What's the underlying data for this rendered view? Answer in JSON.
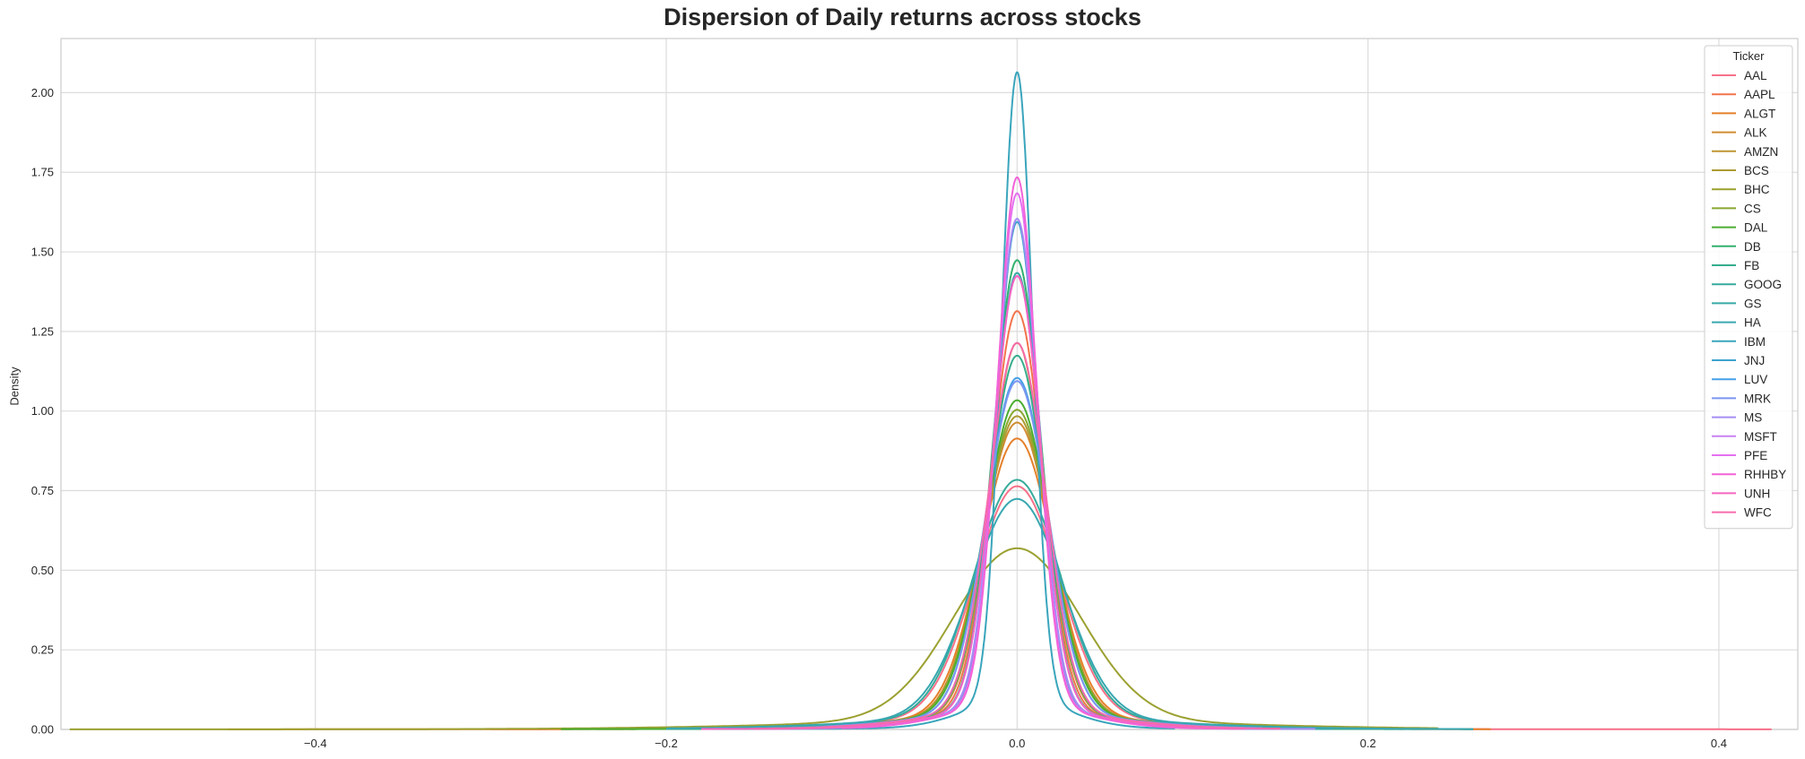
{
  "chart_data": {
    "type": "line",
    "title": "Dispersion of Daily returns across stocks",
    "xlabel": "",
    "ylabel": "Density",
    "xlim": [
      -0.545,
      0.445
    ],
    "ylim": [
      0,
      2.17
    ],
    "xticks": [
      "−0.4",
      "−0.2",
      "0.0",
      "0.2",
      "0.4"
    ],
    "xtick_values": [
      -0.4,
      -0.2,
      0.0,
      0.2,
      0.4
    ],
    "yticks": [
      "0.00",
      "0.25",
      "0.50",
      "0.75",
      "1.00",
      "1.25",
      "1.50",
      "1.75",
      "2.00"
    ],
    "ytick_values": [
      0,
      0.25,
      0.5,
      0.75,
      1.0,
      1.25,
      1.5,
      1.75,
      2.0
    ],
    "grid": true,
    "legend_title": "Ticker",
    "legend_position": "top-right",
    "series": [
      {
        "name": "AAL",
        "color": "#f77189",
        "peak": 0.76,
        "width": 0.024,
        "x_min": -0.3,
        "x_max": 0.43
      },
      {
        "name": "AAPL",
        "color": "#f3734b",
        "peak": 1.31,
        "width": 0.0145,
        "x_min": -0.14,
        "x_max": 0.13
      },
      {
        "name": "ALGT",
        "color": "#e5802b",
        "peak": 0.91,
        "width": 0.0205,
        "x_min": -0.45,
        "x_max": 0.27
      },
      {
        "name": "ALK",
        "color": "#d08c31",
        "peak": 0.96,
        "width": 0.0195,
        "x_min": -0.24,
        "x_max": 0.16
      },
      {
        "name": "AMZN",
        "color": "#be9531",
        "peak": 1.21,
        "width": 0.0155,
        "x_min": -0.15,
        "x_max": 0.16
      },
      {
        "name": "BCS",
        "color": "#ad9b31",
        "peak": 0.98,
        "width": 0.019,
        "x_min": -0.22,
        "x_max": 0.22
      },
      {
        "name": "BHC",
        "color": "#9ba131",
        "peak": 0.565,
        "width": 0.036,
        "x_min": -0.54,
        "x_max": 0.24
      },
      {
        "name": "CS",
        "color": "#87a831",
        "peak": 1.0,
        "width": 0.019,
        "x_min": -0.22,
        "x_max": 0.19
      },
      {
        "name": "DAL",
        "color": "#4aae31",
        "peak": 1.03,
        "width": 0.0185,
        "x_min": -0.26,
        "x_max": 0.15
      },
      {
        "name": "DB",
        "color": "#33b06f",
        "peak": 1.47,
        "width": 0.0135,
        "x_min": -0.18,
        "x_max": 0.14
      },
      {
        "name": "FB",
        "color": "#35ad8d",
        "peak": 1.17,
        "width": 0.016,
        "x_min": -0.2,
        "x_max": 0.26
      },
      {
        "name": "GOOG",
        "color": "#36ab9b",
        "peak": 0.78,
        "width": 0.0245,
        "x_min": -0.13,
        "x_max": 0.15
      },
      {
        "name": "GS",
        "color": "#37a9a6",
        "peak": 1.43,
        "width": 0.0135,
        "x_min": -0.13,
        "x_max": 0.18
      },
      {
        "name": "HA",
        "color": "#38a7b0",
        "peak": 0.72,
        "width": 0.026,
        "x_min": -0.2,
        "x_max": 0.26
      },
      {
        "name": "IBM",
        "color": "#3aa5bc",
        "peak": 2.06,
        "width": 0.0088,
        "x_min": -0.13,
        "x_max": 0.09
      },
      {
        "name": "JNJ",
        "color": "#3ca3ce",
        "peak": 1.59,
        "width": 0.0118,
        "x_min": -0.1,
        "x_max": 0.08
      },
      {
        "name": "LUV",
        "color": "#46a0e7",
        "peak": 1.1,
        "width": 0.0175,
        "x_min": -0.15,
        "x_max": 0.14
      },
      {
        "name": "MRK",
        "color": "#7b96f0",
        "peak": 1.09,
        "width": 0.0175,
        "x_min": -0.11,
        "x_max": 0.14
      },
      {
        "name": "MS",
        "color": "#a58cf3",
        "peak": 1.6,
        "width": 0.0122,
        "x_min": -0.15,
        "x_max": 0.17
      },
      {
        "name": "MSFT",
        "color": "#c981f3",
        "peak": 1.42,
        "width": 0.0135,
        "x_min": -0.15,
        "x_max": 0.15
      },
      {
        "name": "PFE",
        "color": "#e570f1",
        "peak": 1.68,
        "width": 0.0115,
        "x_min": -0.1,
        "x_max": 0.1
      },
      {
        "name": "RHHBY",
        "color": "#f263d9",
        "peak": 1.73,
        "width": 0.0112,
        "x_min": -0.1,
        "x_max": 0.13
      },
      {
        "name": "UNH",
        "color": "#f565c2",
        "peak": 1.42,
        "width": 0.0135,
        "x_min": -0.18,
        "x_max": 0.13
      },
      {
        "name": "WFC",
        "color": "#f66bac",
        "peak": 1.21,
        "width": 0.016,
        "x_min": -0.15,
        "x_max": 0.15
      }
    ]
  }
}
